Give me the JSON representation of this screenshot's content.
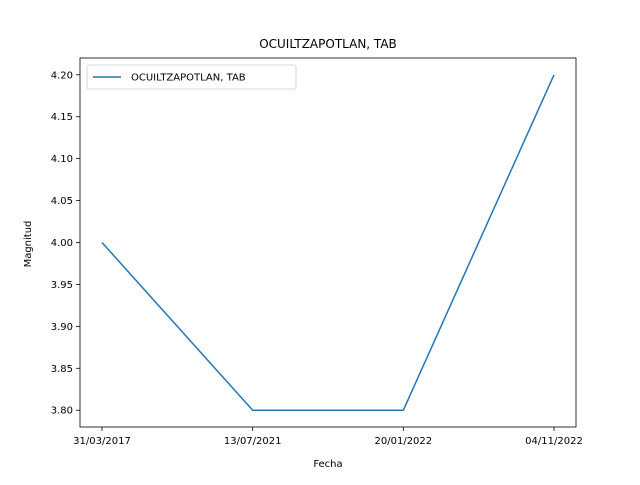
{
  "chart_data": {
    "type": "line",
    "title": "OCUILTZAPOTLAN, TAB",
    "xlabel": "Fecha",
    "ylabel": "Magnitud",
    "categories": [
      "31/03/2017",
      "13/07/2021",
      "20/01/2022",
      "04/11/2022"
    ],
    "series": [
      {
        "name": "OCUILTZAPOTLAN, TAB",
        "values": [
          4.0,
          3.8,
          3.8,
          4.2
        ],
        "color": "#1f77b4"
      }
    ],
    "ylim": [
      3.78,
      4.22
    ],
    "yticks": [
      3.8,
      3.85,
      3.9,
      3.95,
      4.0,
      4.05,
      4.1,
      4.15,
      4.2
    ],
    "ytick_labels": [
      "3.80",
      "3.85",
      "3.90",
      "3.95",
      "4.00",
      "4.05",
      "4.10",
      "4.15",
      "4.20"
    ],
    "grid": false,
    "legend_position": "top-left"
  }
}
